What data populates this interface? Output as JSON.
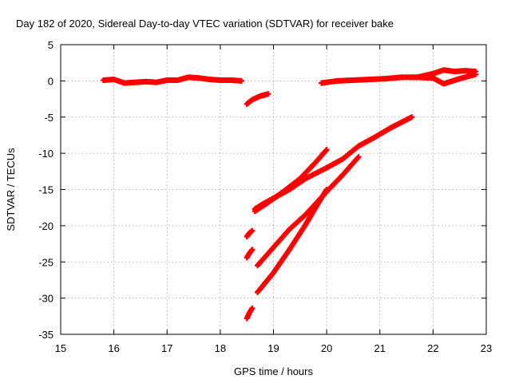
{
  "chart_data": {
    "type": "scatter",
    "title": "Day 182 of 2020, Sidereal Day-to-day VTEC variation (SDTVAR) for receiver bake",
    "xlabel": "GPS time / hours",
    "ylabel": "SDTVAR / TECUs",
    "xlim": [
      15,
      23
    ],
    "ylim": [
      -35,
      5
    ],
    "xticks": [
      15,
      16,
      17,
      18,
      19,
      20,
      21,
      22,
      23
    ],
    "yticks": [
      -35,
      -30,
      -25,
      -20,
      -15,
      -10,
      -5,
      0,
      5
    ],
    "grid": true,
    "marker": "plus",
    "color": "#ff0000",
    "series": [
      {
        "x": [
          15.8,
          16.0,
          16.2,
          16.4,
          16.6,
          16.8,
          17.0,
          17.2,
          17.4,
          17.6,
          17.8,
          18.0,
          18.2,
          18.4
        ],
        "y": [
          0.1,
          0.2,
          -0.3,
          -0.2,
          -0.1,
          -0.2,
          0.1,
          0.1,
          0.5,
          0.4,
          0.2,
          0.1,
          0.1,
          0.0
        ]
      },
      {
        "x": [
          18.5,
          18.6,
          18.75,
          18.9
        ],
        "y": [
          -3.2,
          -2.6,
          -2.1,
          -1.8
        ]
      },
      {
        "x": [
          19.9,
          20.2,
          20.5,
          20.8,
          21.1,
          21.4,
          21.7,
          22.0,
          22.2,
          22.5,
          22.8
        ],
        "y": [
          -0.3,
          0.0,
          0.1,
          0.2,
          0.3,
          0.5,
          0.5,
          0.4,
          -0.4,
          0.3,
          0.9
        ]
      },
      {
        "x": [
          21.7,
          22.0,
          22.2,
          22.4,
          22.6,
          22.8
        ],
        "y": [
          0.5,
          1.0,
          1.5,
          1.3,
          1.4,
          1.3
        ]
      },
      {
        "x": [
          18.5,
          18.55,
          18.6
        ],
        "y": [
          -21.5,
          -21.0,
          -20.7
        ]
      },
      {
        "x": [
          18.5,
          18.55,
          18.6
        ],
        "y": [
          -24.4,
          -23.8,
          -23.3
        ]
      },
      {
        "x": [
          18.5,
          18.55,
          18.6
        ],
        "y": [
          -32.8,
          -32.0,
          -31.4
        ]
      },
      {
        "x": [
          18.65,
          18.9,
          19.2,
          19.5,
          19.8,
          20.0
        ],
        "y": [
          -18.0,
          -16.8,
          -15.2,
          -13.5,
          -11.2,
          -9.5
        ]
      },
      {
        "x": [
          18.65,
          18.8,
          19.0,
          19.3,
          19.6,
          20.0,
          20.3,
          20.6,
          20.9,
          21.2,
          21.6
        ],
        "y": [
          -17.7,
          -17.0,
          -16.2,
          -15.0,
          -13.5,
          -12.0,
          -10.8,
          -9.0,
          -7.8,
          -6.5,
          -5.0
        ]
      },
      {
        "x": [
          18.7,
          19.0,
          19.3,
          19.6,
          20.0,
          20.3,
          20.6
        ],
        "y": [
          -25.5,
          -23.0,
          -20.5,
          -18.5,
          -15.3,
          -13.0,
          -10.5
        ]
      },
      {
        "x": [
          18.7,
          19.0,
          19.3,
          19.6,
          19.8,
          20.0
        ],
        "y": [
          -29.2,
          -26.5,
          -23.3,
          -19.9,
          -17.4,
          -15.0
        ]
      }
    ]
  }
}
